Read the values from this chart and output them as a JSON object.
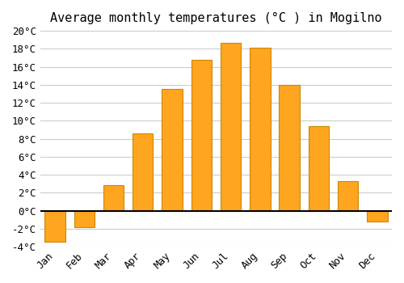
{
  "title": "Average monthly temperatures (°C ) in Mogilno",
  "months": [
    "Jan",
    "Feb",
    "Mar",
    "Apr",
    "May",
    "Jun",
    "Jul",
    "Aug",
    "Sep",
    "Oct",
    "Nov",
    "Dec"
  ],
  "values": [
    -3.5,
    -1.8,
    2.8,
    8.6,
    13.5,
    16.8,
    18.7,
    18.1,
    14.0,
    9.4,
    3.3,
    -1.2
  ],
  "bar_color": "#FFA520",
  "bar_edge_color": "#CC8800",
  "background_color": "#ffffff",
  "grid_color": "#cccccc",
  "ylim": [
    -4,
    20
  ],
  "yticks": [
    -4,
    -2,
    0,
    2,
    4,
    6,
    8,
    10,
    12,
    14,
    16,
    18,
    20
  ],
  "zero_line_color": "#000000",
  "title_fontsize": 11,
  "tick_fontsize": 9
}
